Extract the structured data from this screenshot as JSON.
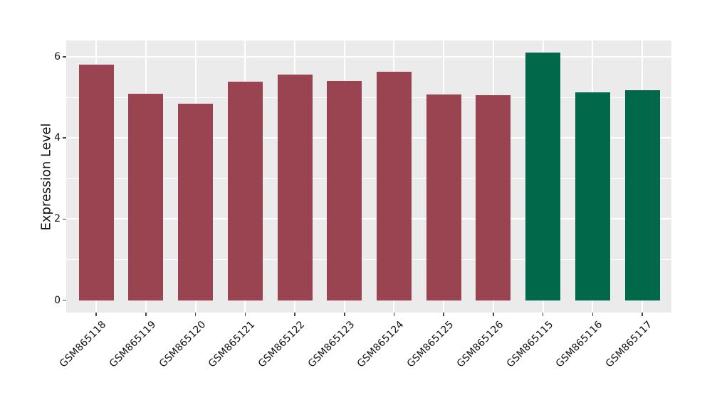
{
  "chart_data": {
    "type": "bar",
    "title": "",
    "xlabel": "",
    "ylabel": "Expression Level",
    "categories": [
      "GSM865118",
      "GSM865119",
      "GSM865120",
      "GSM865121",
      "GSM865122",
      "GSM865123",
      "GSM865124",
      "GSM865125",
      "GSM865126",
      "GSM865115",
      "GSM865116",
      "GSM865117"
    ],
    "values": [
      5.81,
      5.09,
      4.85,
      5.38,
      5.56,
      5.4,
      5.64,
      5.08,
      5.05,
      6.1,
      5.13,
      5.17
    ],
    "bar_colors": [
      "#9a4452",
      "#9a4452",
      "#9a4452",
      "#9a4452",
      "#9a4452",
      "#9a4452",
      "#9a4452",
      "#9a4452",
      "#9a4452",
      "#02684a",
      "#02684a",
      "#02684a"
    ],
    "ylim": [
      0,
      6.42
    ],
    "yticks": [
      0,
      2,
      4,
      6
    ],
    "ytick_labels": [
      "0",
      "2",
      "4",
      "6"
    ],
    "minor_grid_values": [
      1,
      3,
      5
    ],
    "grid": "on",
    "legend": null,
    "bar_orientation": "vertical",
    "x_label_rotation_deg": 45
  },
  "colors": {
    "panel_background": "#ebebeb",
    "grid_major": "#ffffff",
    "grid_minor": "#ffffff",
    "red_group": "#9a4452",
    "green_group": "#02684a",
    "text": "#111111",
    "tick_mark": "#444444",
    "figure_background": "#ffffff"
  }
}
